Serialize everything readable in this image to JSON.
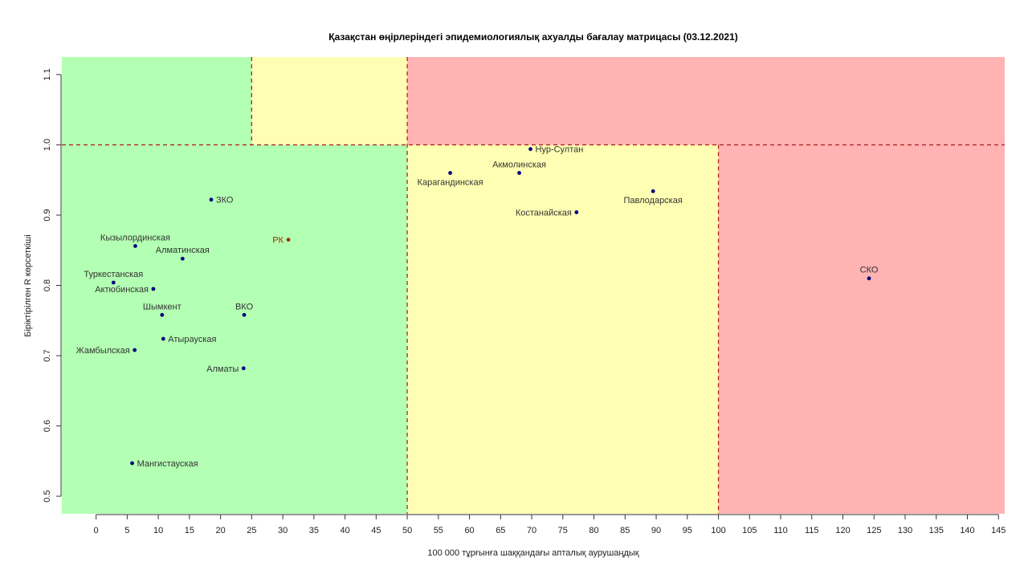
{
  "chart_data": {
    "type": "scatter",
    "title": "Қазақстан өңірлеріндегі эпидемиологиялық ахуалды бағалау матрицасы  (03.12.2021)",
    "xlabel": "100 000 тұрғынға шаққандағы апталық аурушаңдық",
    "ylabel": "Біріктірілген R көрсеткіші",
    "xlim": [
      -5.5,
      146
    ],
    "ylim": [
      0.475,
      1.125
    ],
    "xticks": [
      "0",
      "5",
      "10",
      "15",
      "20",
      "25",
      "30",
      "35",
      "40",
      "45",
      "50",
      "55",
      "60",
      "65",
      "70",
      "75",
      "80",
      "85",
      "90",
      "95",
      "100",
      "105",
      "110",
      "115",
      "120",
      "125",
      "130",
      "135",
      "140",
      "145"
    ],
    "yticks": [
      "0.5",
      "0.6",
      "0.7",
      "0.8",
      "0.9",
      "1.0",
      "1.1"
    ],
    "thresholds": {
      "x": [
        25,
        50,
        100
      ],
      "y": 1.0
    },
    "zone_colors": {
      "green": "#b3ffb3",
      "yellow": "#ffffb3",
      "red": "#ffb3b3"
    },
    "point_color": "#000080",
    "highlight_color": "#993300",
    "label_color": "#333333",
    "points": [
      {
        "name": "ЗКО",
        "x": 18.5,
        "y": 0.922,
        "label_pos": "right"
      },
      {
        "name": "Кызылординская",
        "x": 6.3,
        "y": 0.856,
        "label_pos": "top"
      },
      {
        "name": "Алматинская",
        "x": 13.9,
        "y": 0.838,
        "label_pos": "top"
      },
      {
        "name": "Туркестанская",
        "x": 2.8,
        "y": 0.804,
        "label_pos": "top"
      },
      {
        "name": "Актюбинская",
        "x": 9.2,
        "y": 0.795,
        "label_pos": "left"
      },
      {
        "name": "Шымкент",
        "x": 10.6,
        "y": 0.758,
        "label_pos": "top"
      },
      {
        "name": "ВКО",
        "x": 23.8,
        "y": 0.758,
        "label_pos": "top"
      },
      {
        "name": "Атырауская",
        "x": 10.8,
        "y": 0.724,
        "label_pos": "right"
      },
      {
        "name": "Жамбылская",
        "x": 6.2,
        "y": 0.708,
        "label_pos": "left"
      },
      {
        "name": "Алматы",
        "x": 23.7,
        "y": 0.682,
        "label_pos": "left"
      },
      {
        "name": "Мангистауская",
        "x": 5.8,
        "y": 0.547,
        "label_pos": "right"
      },
      {
        "name": "РК",
        "x": 30.9,
        "y": 0.865,
        "label_pos": "left",
        "highlight": true
      },
      {
        "name": "Нур-Султан",
        "x": 69.8,
        "y": 0.994,
        "label_pos": "right"
      },
      {
        "name": "Акмолинская",
        "x": 68.0,
        "y": 0.96,
        "label_pos": "top"
      },
      {
        "name": "Карагандинская",
        "x": 56.9,
        "y": 0.96,
        "label_pos": "bottom"
      },
      {
        "name": "Павлодарская",
        "x": 89.5,
        "y": 0.934,
        "label_pos": "bottom"
      },
      {
        "name": "Костанайская",
        "x": 77.2,
        "y": 0.904,
        "label_pos": "left"
      },
      {
        "name": "СКО",
        "x": 124.2,
        "y": 0.81,
        "label_pos": "top"
      }
    ]
  }
}
